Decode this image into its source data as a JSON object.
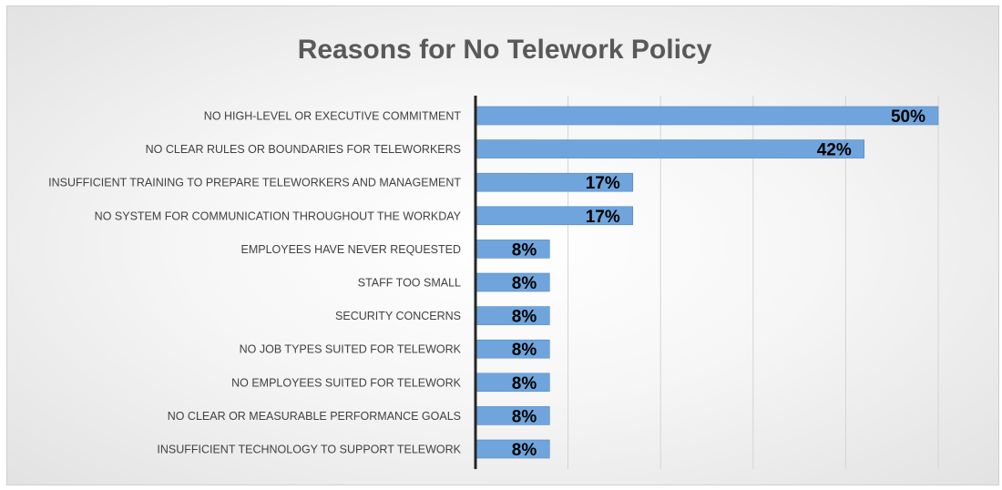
{
  "chart_data": {
    "type": "bar",
    "orientation": "horizontal",
    "title": "Reasons for No Telework Policy",
    "categories": [
      "NO HIGH-LEVEL OR EXECUTIVE COMMITMENT",
      "NO CLEAR RULES OR BOUNDARIES FOR TELEWORKERS",
      "INSUFFICIENT TRAINING TO PREPARE TELEWORKERS AND MANAGEMENT",
      "NO SYSTEM FOR COMMUNICATION THROUGHOUT THE WORKDAY",
      "EMPLOYEES HAVE NEVER REQUESTED",
      "STAFF TOO SMALL",
      "SECURITY CONCERNS",
      "NO JOB TYPES SUITED FOR TELEWORK",
      "NO EMPLOYEES SUITED FOR TELEWORK",
      "NO CLEAR OR MEASURABLE PERFORMANCE GOALS",
      "INSUFFICIENT TECHNOLOGY TO SUPPORT TELEWORK"
    ],
    "values": [
      50,
      42,
      17,
      17,
      8,
      8,
      8,
      8,
      8,
      8,
      8
    ],
    "data_labels": [
      "50%",
      "42%",
      "17%",
      "17%",
      "8%",
      "8%",
      "8%",
      "8%",
      "8%",
      "8%",
      "8%"
    ],
    "xlim": [
      0,
      50
    ],
    "grid": true,
    "legend": "none",
    "bar_color": "#6fa5dc",
    "bar_edge_color": "#4f86c2",
    "axis_color": "#262626",
    "grid_color": "#d4d4d4"
  }
}
